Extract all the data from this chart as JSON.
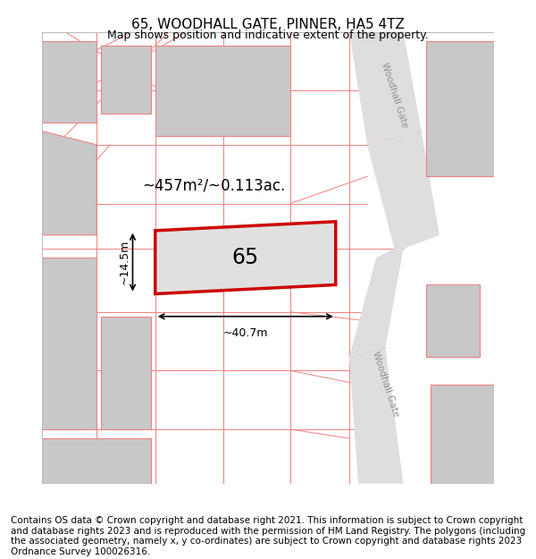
{
  "title": "65, WOODHALL GATE, PINNER, HA5 4TZ",
  "subtitle": "Map shows position and indicative extent of the property.",
  "footer": "Contains OS data © Crown copyright and database right 2021. This information is subject to Crown copyright and database rights 2023 and is reproduced with the permission of HM Land Registry. The polygons (including the associated geometry, namely x, y co-ordinates) are subject to Crown copyright and database rights 2023 Ordnance Survey 100026316.",
  "area_label": "~457m²/~0.113ac.",
  "width_label": "~40.7m",
  "height_label": "~14.5m",
  "plot_number": "65",
  "map_bg": "#f5f5f5",
  "plot_fill": "#e0e0e0",
  "plot_edge_color": "#cc0000",
  "road_fill": "#dedede",
  "block_fill": "#c8c8c8",
  "pink_line_color": "#f08080",
  "title_fontsize": 11,
  "subtitle_fontsize": 9,
  "footer_fontsize": 7.5
}
